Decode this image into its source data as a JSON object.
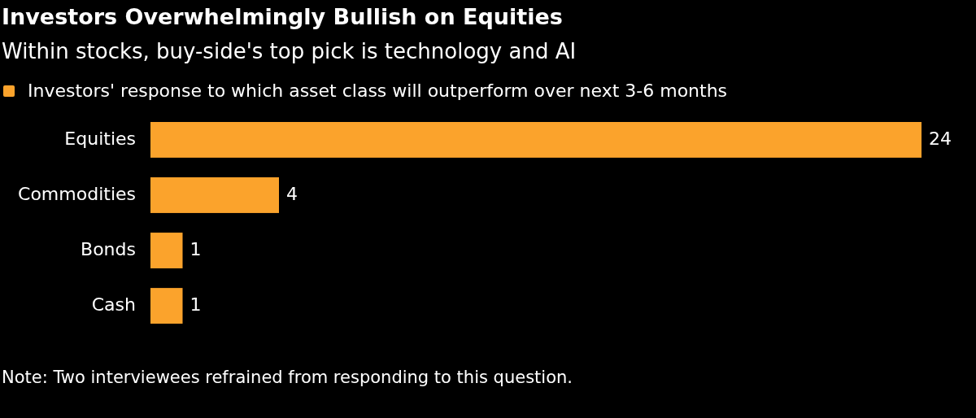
{
  "chart_data": {
    "type": "bar",
    "orientation": "horizontal",
    "title": "Investors Overwhelmingly Bullish on Equities",
    "subtitle": "Within stocks, buy-side's top pick is technology and AI",
    "categories": [
      "Equities",
      "Commodities",
      "Bonds",
      "Cash"
    ],
    "series": [
      {
        "name": "Investors' response to which asset class will outperform over next 3-6 months",
        "color": "#fba32c",
        "values": [
          24,
          4,
          1,
          1
        ]
      }
    ],
    "data_labels": true,
    "legend": "top left",
    "annotations": [
      "Note: Two interviewees refrained from responding to this question."
    ]
  }
}
